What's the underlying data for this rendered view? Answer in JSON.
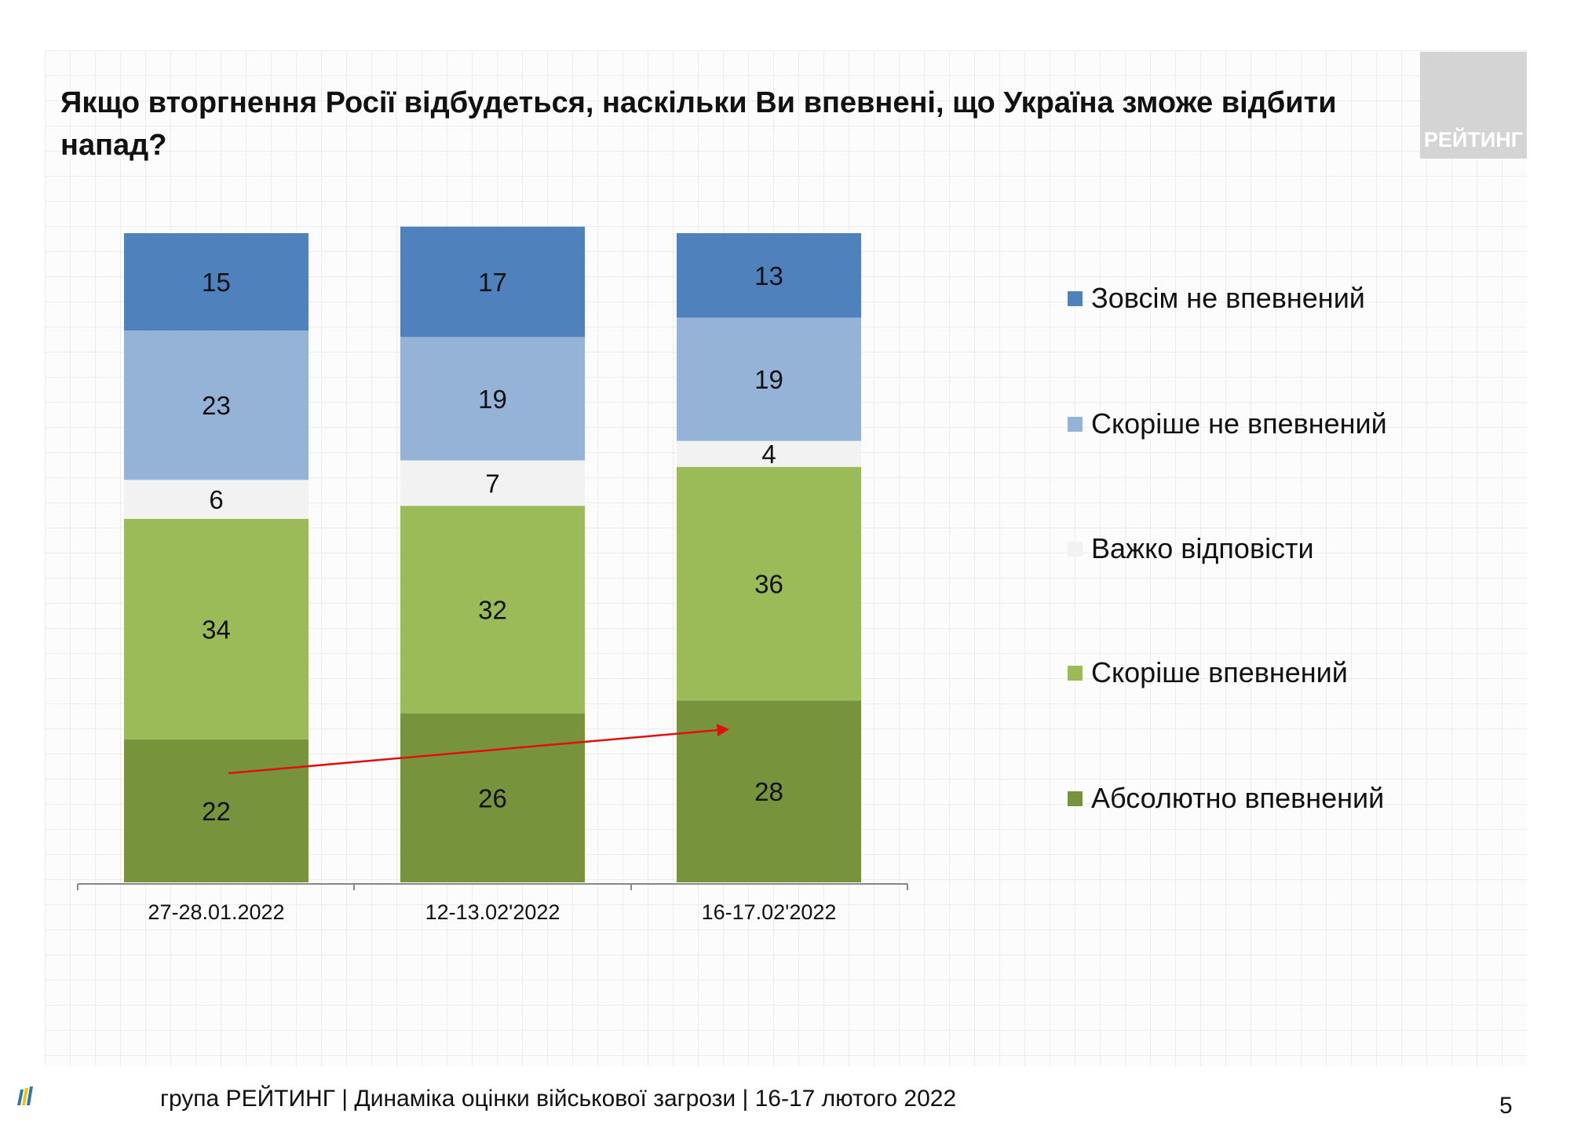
{
  "title": "Якщо вторгнення Росії відбудеться, наскільки Ви впевнені, що Україна зможе відбити напад?",
  "logo_text": "РЕЙТИНГ",
  "footer": {
    "text": "група РЕЙТИНГ |  Динаміка оцінки військової загрози | 16-17 лютого 2022",
    "page": "5"
  },
  "chart_data": {
    "type": "bar",
    "stacked": true,
    "ylim": [
      0,
      100
    ],
    "grid": false,
    "legend_position": "right",
    "categories": [
      "27-28.01.2022",
      "12-13.02'2022",
      "16-17.02'2022"
    ],
    "series": [
      {
        "name": "Абсолютно впевнений",
        "color": "#77933C",
        "values": [
          22,
          26,
          28
        ]
      },
      {
        "name": "Скоріше впевнений",
        "color": "#9BBB59",
        "values": [
          34,
          32,
          36
        ]
      },
      {
        "name": "Важко відповісти",
        "color": "#F2F2F2",
        "values": [
          6,
          7,
          4
        ]
      },
      {
        "name": "Скоріше не впевнений",
        "color": "#95B3D7",
        "values": [
          23,
          19,
          19
        ]
      },
      {
        "name": "Зовсім не впевнений",
        "color": "#4F81BD",
        "values": [
          15,
          17,
          13
        ]
      }
    ],
    "annotations": [
      {
        "type": "arrow",
        "color": "#E01010",
        "description_from": "27-28.01.2022",
        "to": "16-17.02'2022"
      }
    ]
  }
}
